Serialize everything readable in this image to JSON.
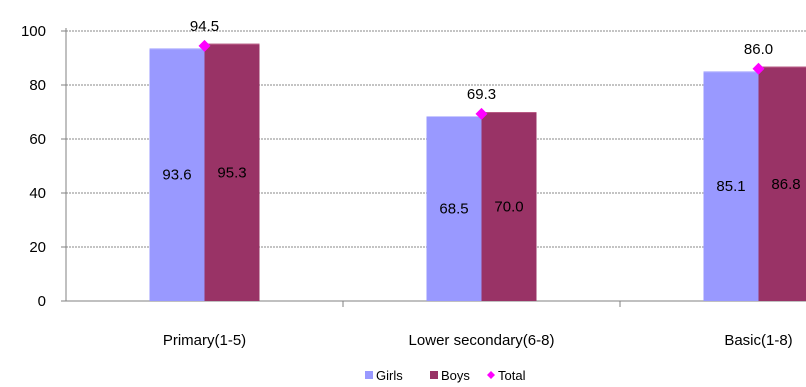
{
  "chart_data": {
    "type": "bar",
    "categories": [
      "Primary(1-5)",
      "Lower secondary(6-8)",
      "Basic(1-8)"
    ],
    "series": [
      {
        "name": "Girls",
        "values": [
          93.6,
          68.5,
          85.1
        ],
        "color": "#9999ff"
      },
      {
        "name": "Boys",
        "values": [
          95.3,
          70.0,
          86.8
        ],
        "color": "#993366"
      }
    ],
    "total": {
      "name": "Total",
      "values": [
        94.5,
        69.3,
        86.0
      ],
      "color": "#ff00ff",
      "marker": "diamond"
    },
    "value_labels": {
      "Girls": [
        "93.6",
        "68.5",
        "85.1"
      ],
      "Boys": [
        "95.3",
        "70.0",
        "86.8"
      ],
      "Total": [
        "94.5",
        "69.3",
        "86.0"
      ]
    },
    "y_ticks": [
      0,
      20,
      40,
      60,
      80,
      100
    ],
    "ylim": [
      0,
      100
    ],
    "grid": true,
    "legend_position": "bottom",
    "title": "",
    "xlabel": "",
    "ylabel": ""
  }
}
